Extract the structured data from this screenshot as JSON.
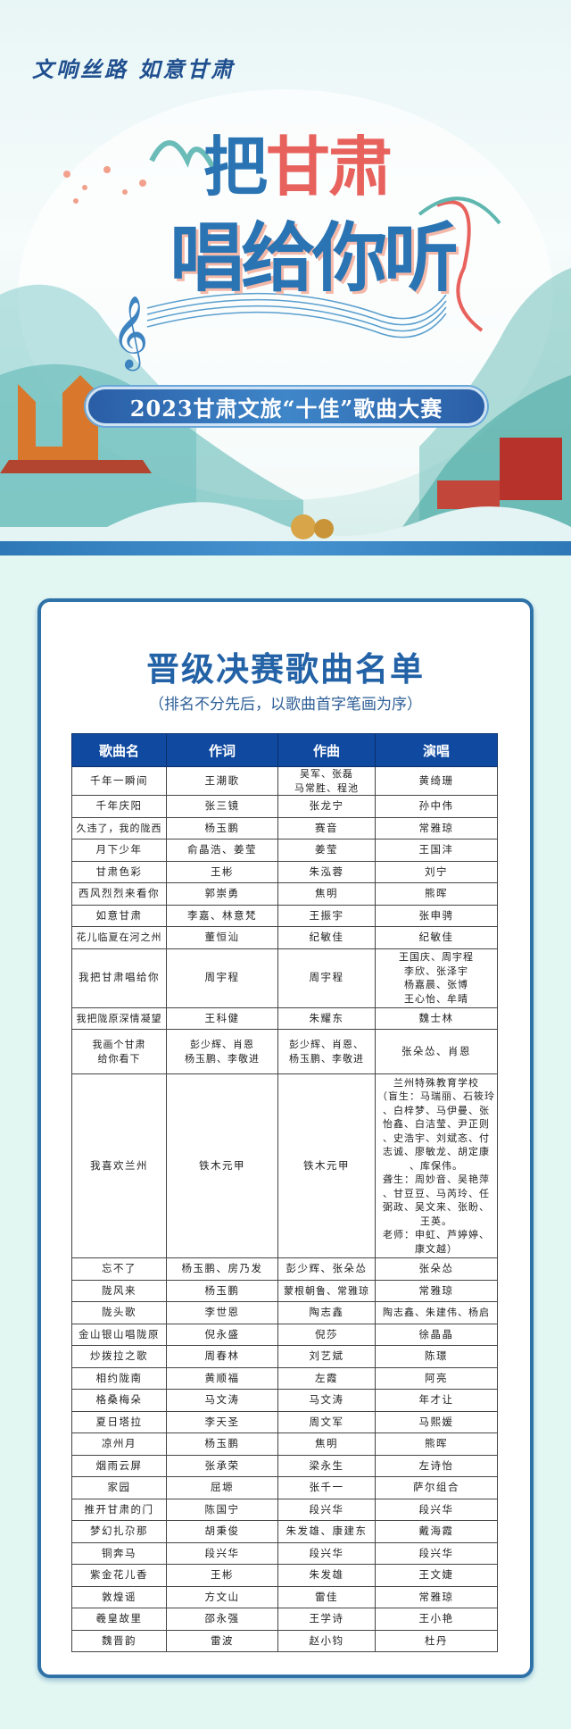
{
  "banner": {
    "slogan": "文响丝路 如意甘肃",
    "title_part1": "把",
    "title_part2": "甘肃",
    "title_line2": "唱给你听",
    "event": "2023甘肃文旅“十佳”歌曲大赛",
    "colors": {
      "blue": "#2a74b3",
      "red": "#e8625d",
      "strip": "#2e78b8"
    }
  },
  "list": {
    "title": "晋级决赛歌曲名单",
    "subtitle": "（排名不分先后，以歌曲首字笔画为序）",
    "headers": [
      "歌曲名",
      "作词",
      "作曲",
      "演唱"
    ],
    "rows": [
      [
        "千年一瞬间",
        "王潮歌",
        "吴军、张磊\n马常胜、程池",
        "黄绮珊"
      ],
      [
        "千年庆阳",
        "张三镜",
        "张龙宁",
        "孙中伟"
      ],
      [
        "久违了，我的陇西",
        "杨玉鹏",
        "赛音",
        "常雅琼"
      ],
      [
        "月下少年",
        "俞晶浩、姜莹",
        "姜莹",
        "王国沣"
      ],
      [
        "甘肃色彩",
        "王彬",
        "朱泓蓉",
        "刘宁"
      ],
      [
        "西风烈烈来看你",
        "郭崇勇",
        "焦明",
        "熊晖"
      ],
      [
        "如意甘肃",
        "李嘉、林意梵",
        "王振宇",
        "张申骋"
      ],
      [
        "花儿临夏在河之州",
        "董恒汕",
        "纪敏佳",
        "纪敏佳"
      ],
      [
        "我把甘肃唱给你",
        "周宇程",
        "周宇程",
        "王国庆、周宇程\n李欣、张泽宇\n杨嘉晨、张博\n王心怡、牟晴"
      ],
      [
        "我把陇原深情凝望",
        "王科健",
        "朱耀东",
        "魏士林"
      ],
      [
        "我画个甘肃\n给你看下",
        "彭少辉、肖恩\n杨玉鹏、李敬进",
        "彭少辉、肖恩、\n杨玉鹏、李敬进",
        "张朵怂、肖恩"
      ],
      [
        "我喜欢兰州",
        "铁木元甲",
        "铁木元甲",
        "兰州特殊教育学校\n（盲生：马瑞丽、石筱玲\n、白梓梦、马伊曼、张\n怡鑫、白洁莹、尹正则\n、史浩宇、刘斌忞、付\n志诚、廖敏龙、胡定康\n、库保伟。\n聋生：周妙音、吴艳萍\n、甘豆豆、马芮玲、任\n弼政、吴文来、张盼、\n王英。\n老师：申虹、芦婷婷、\n康文越）"
      ],
      [
        "忘不了",
        "杨玉鹏、房乃发",
        "彭少辉、张朵怂",
        "张朵怂"
      ],
      [
        "陇风来",
        "杨玉鹏",
        "蒙根朝鲁、常雅琼",
        "常雅琼"
      ],
      [
        "陇头歌",
        "李世恩",
        "陶志鑫",
        "陶志鑫、朱建伟、杨启"
      ],
      [
        "金山银山唱陇原",
        "倪永盛",
        "倪莎",
        "徐晶晶"
      ],
      [
        "炒拨拉之歌",
        "周春林",
        "刘艺斌",
        "陈璟"
      ],
      [
        "相约陇南",
        "黄顺福",
        "左霞",
        "阿亮"
      ],
      [
        "格桑梅朵",
        "马文涛",
        "马文涛",
        "年才让"
      ],
      [
        "夏日塔拉",
        "李天圣",
        "周文军",
        "马熙媛"
      ],
      [
        "凉州月",
        "杨玉鹏",
        "焦明",
        "熊晖"
      ],
      [
        "烟雨云屏",
        "张承荣",
        "梁永生",
        "左诗怡"
      ],
      [
        "家园",
        "屈塬",
        "张千一",
        "萨尔组合"
      ],
      [
        "推开甘肃的门",
        "陈国宁",
        "段兴华",
        "段兴华"
      ],
      [
        "梦幻扎尕那",
        "胡秉俊",
        "朱发雄、康建东",
        "戴海霞"
      ],
      [
        "铜奔马",
        "段兴华",
        "段兴华",
        "段兴华"
      ],
      [
        "紫金花儿香",
        "王彬",
        "朱发雄",
        "王文婕"
      ],
      [
        "敦煌谣",
        "方文山",
        "雷佳",
        "常雅琼"
      ],
      [
        "羲皇故里",
        "邵永强",
        "王学诗",
        "王小艳"
      ],
      [
        "魏晋韵",
        "雷波",
        "赵小钧",
        "杜丹"
      ]
    ]
  }
}
